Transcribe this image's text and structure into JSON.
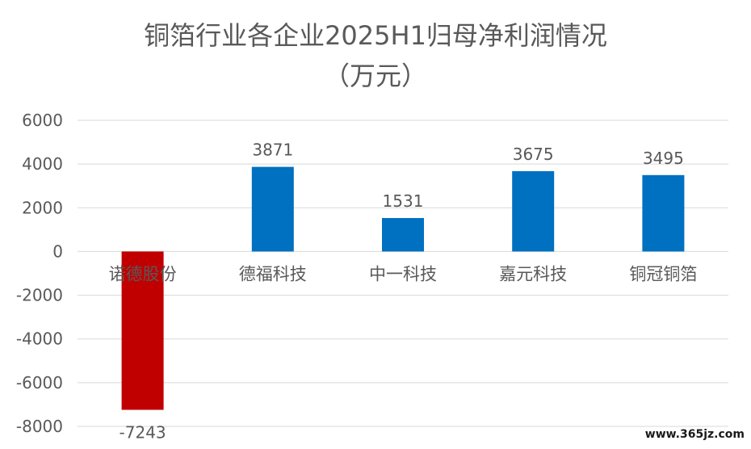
{
  "chart_data": {
    "type": "bar",
    "title_line1": "铜箔行业各企业2025H1归母净利润情况",
    "title_line2": "（万元）",
    "categories": [
      "诺德股份",
      "德福科技",
      "中一科技",
      "嘉元科技",
      "铜冠铜箔"
    ],
    "values": [
      -7243,
      3871,
      1531,
      3675,
      3495
    ],
    "data_labels": [
      "-7243",
      "3871",
      "1531",
      "3675",
      "3495"
    ],
    "ylim": [
      -8000,
      6000
    ],
    "yticks": [
      6000,
      4000,
      2000,
      0,
      -2000,
      -4000,
      -6000,
      -8000
    ],
    "ytick_labels": [
      "6000",
      "4000",
      "2000",
      "0",
      "-2000",
      "-4000",
      "-6000",
      "-8000"
    ],
    "grid": true,
    "colors": {
      "positive": "#0070C0",
      "negative": "#C00000",
      "grid": "#D9D9D9",
      "text": "#595959"
    }
  },
  "watermark": "www.365jz.com"
}
